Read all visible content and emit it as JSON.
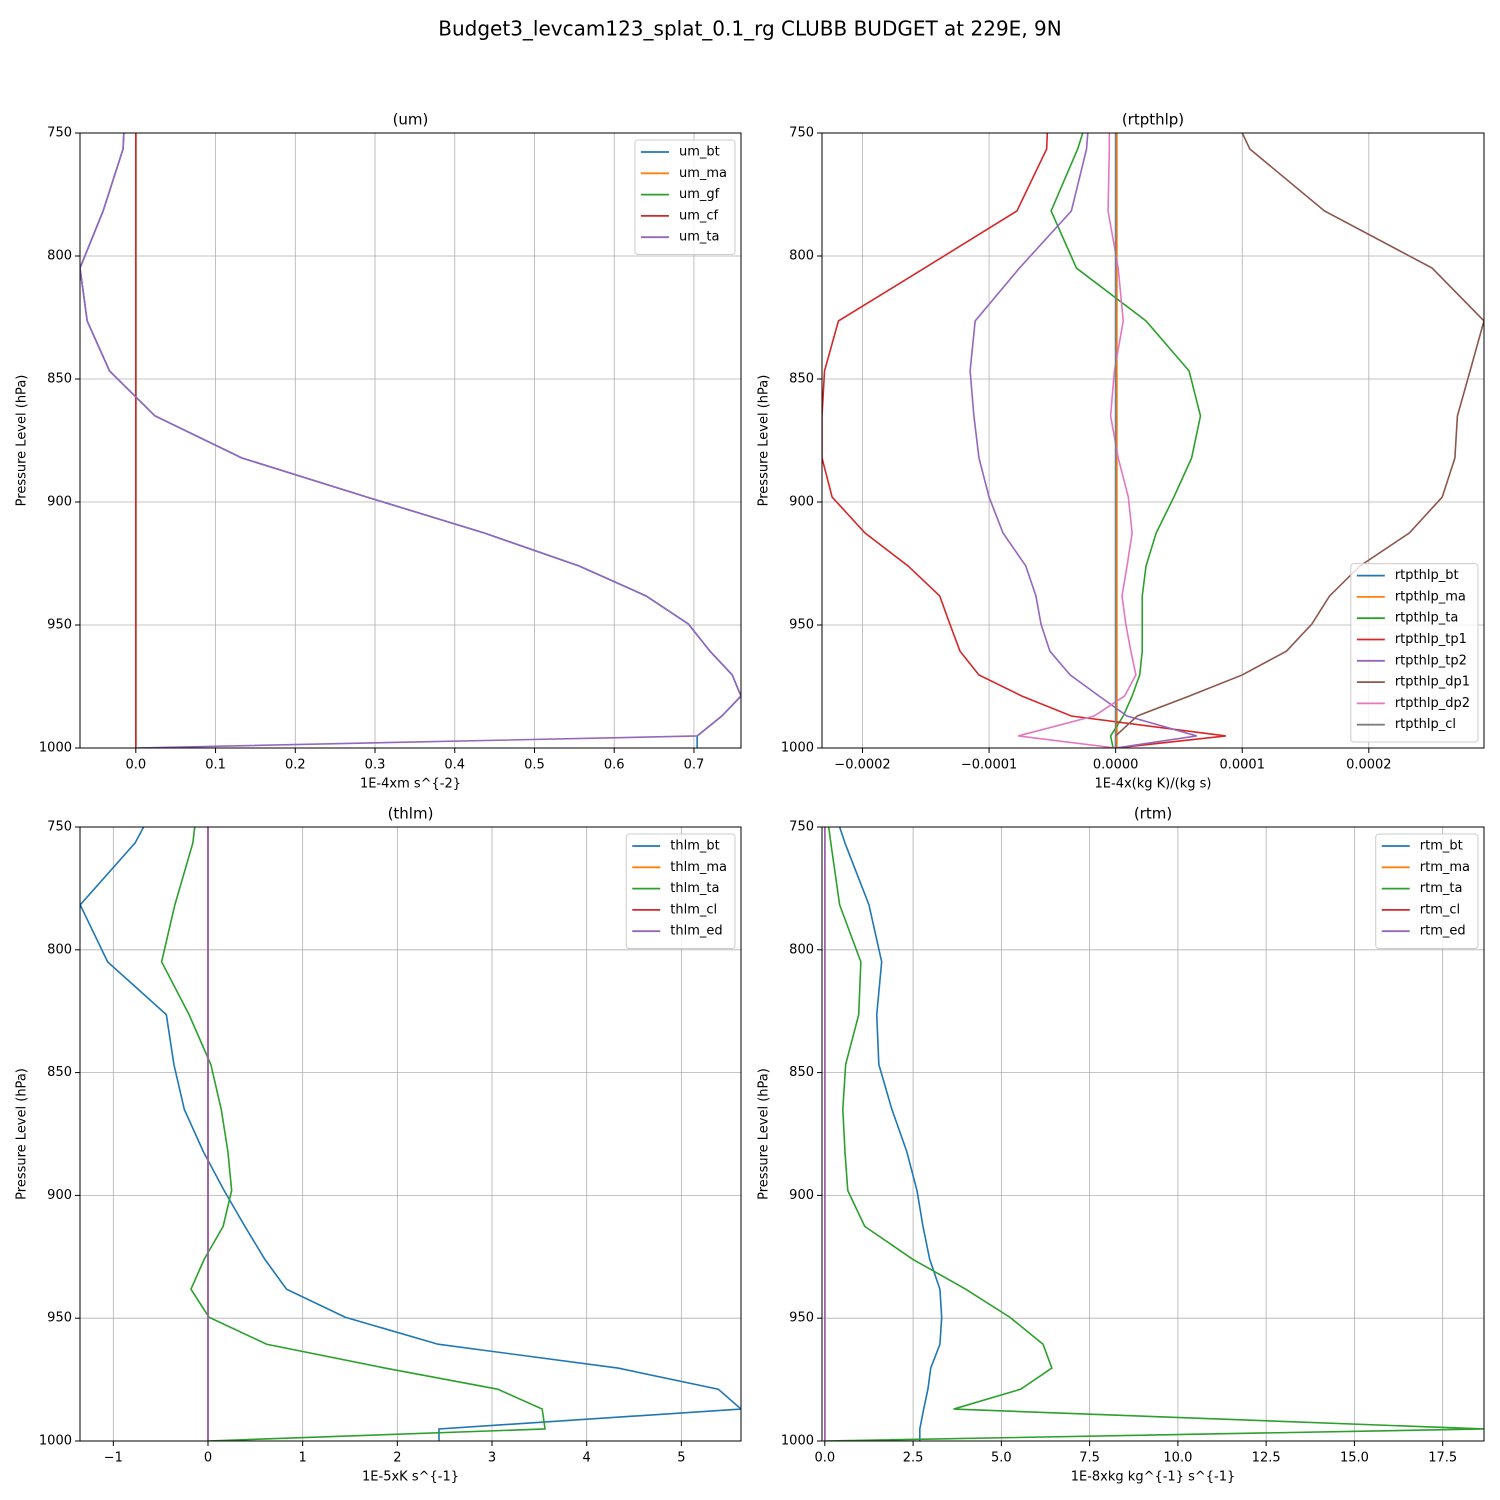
{
  "title": "Budget3_levcam123_splat_0.1_rg CLUBB BUDGET at 229E, 9N",
  "chart_data": [
    {
      "type": "line",
      "title": "(um)",
      "xlabel": "1E-4xm s^{-2}",
      "ylabel": "Pressure Level (hPa)",
      "y": [
        750,
        756.5,
        781.7,
        804.9,
        826.4,
        846.7,
        865,
        882.1,
        898,
        912.6,
        926,
        938.2,
        949.6,
        960.6,
        970.3,
        978.9,
        987,
        995.1,
        1000
      ],
      "series": [
        {
          "name": "um_bt",
          "color": "#1f77b4",
          "values": [
            -0.015,
            -0.016,
            -0.041,
            -0.07,
            -0.061,
            -0.033,
            0.024,
            0.133,
            0.29,
            0.437,
            0.556,
            0.64,
            0.693,
            0.72,
            0.748,
            0.759,
            0.735,
            0.704,
            0.704
          ]
        },
        {
          "name": "um_ma",
          "color": "#ff7f0e",
          "values": [
            0,
            0,
            0,
            0,
            0,
            0,
            0,
            0,
            0,
            0,
            0,
            0,
            0,
            0,
            0,
            0,
            0,
            0,
            0
          ]
        },
        {
          "name": "um_gf",
          "color": "#2ca02c",
          "values": [
            0,
            0,
            0,
            0,
            0,
            0,
            0,
            0,
            0,
            0,
            0,
            0,
            0,
            0,
            0,
            0,
            0,
            0,
            0
          ]
        },
        {
          "name": "um_cf",
          "color": "#d62728",
          "values": [
            0,
            0,
            0,
            0,
            0,
            0,
            0,
            0,
            0,
            0,
            0,
            0,
            0,
            0,
            0,
            0,
            0,
            0,
            0
          ]
        },
        {
          "name": "um_ta",
          "color": "#9467bd",
          "values": [
            -0.015,
            -0.016,
            -0.041,
            -0.07,
            -0.061,
            -0.033,
            0.024,
            0.133,
            0.29,
            0.437,
            0.556,
            0.64,
            0.693,
            0.72,
            0.748,
            0.759,
            0.735,
            0.704,
            0
          ]
        }
      ],
      "xlim": [
        -0.07,
        0.759
      ],
      "ylim": [
        1000,
        750
      ],
      "xticks": [
        {
          "value": 0,
          "label": "0.0"
        },
        0.1,
        0.2,
        0.3,
        0.4,
        0.5,
        0.6,
        0.7
      ],
      "yticks": [
        750,
        800,
        850,
        900,
        950,
        1000
      ],
      "grid": true,
      "legend": "upper right"
    },
    {
      "type": "line",
      "title": "(rtpthlp)",
      "xlabel": "1E-4x(kg K)/(kg s)",
      "ylabel": "Pressure Level (hPa)",
      "y": [
        750,
        756.5,
        781.7,
        804.9,
        826.4,
        846.7,
        865,
        882.1,
        898,
        912.6,
        926,
        938.2,
        949.6,
        960.6,
        970.3,
        978.9,
        987,
        995.1,
        1000
      ],
      "series": [
        {
          "name": "rtpthlp_bt",
          "color": "#1f77b4",
          "values": [
            0,
            0,
            0,
            0,
            0,
            0,
            0,
            0,
            0,
            0,
            0,
            0,
            0,
            0,
            0,
            0,
            0,
            0,
            0
          ]
        },
        {
          "name": "rtpthlp_ma",
          "color": "#ff7f0e",
          "values": [
            1e-06,
            1e-06,
            1e-06,
            1e-06,
            1e-06,
            1e-06,
            1e-06,
            1e-06,
            1e-06,
            1e-06,
            1e-06,
            1e-06,
            1e-06,
            1e-06,
            1e-06,
            1e-06,
            1e-06,
            1e-06,
            1e-06
          ]
        },
        {
          "name": "rtpthlp_ta",
          "color": "#2ca02c",
          "values": [
            -2.6e-05,
            -3e-05,
            -5.1e-05,
            -3.1e-05,
            2.4e-05,
            5.8e-05,
            6.7e-05,
            6e-05,
            4.6e-05,
            3.2e-05,
            2.4e-05,
            2.1e-05,
            2.1e-05,
            2.1e-05,
            1.9e-05,
            1.3e-05,
            6e-06,
            -4e-06,
            -2e-06
          ]
        },
        {
          "name": "rtpthlp_tp1",
          "color": "#d62728",
          "values": [
            -5.4e-05,
            -5.45e-05,
            -7.8e-05,
            -0.000151,
            -0.000219,
            -0.00023,
            -0.000232,
            -0.000232,
            -0.000224,
            -0.000198,
            -0.000164,
            -0.000139,
            -0.000131,
            -0.000123,
            -0.000108,
            -7.4e-05,
            -3.5e-05,
            8.7e-05,
            0
          ]
        },
        {
          "name": "rtpthlp_tp2",
          "color": "#9467bd",
          "values": [
            -2.2e-05,
            -2.3e-05,
            -3.5e-05,
            -7.6e-05,
            -0.000111,
            -0.000115,
            -0.000112,
            -0.000108,
            -0.0001,
            -8.9e-05,
            -7.1e-05,
            -6.3e-05,
            -5.9e-05,
            -5.2e-05,
            -3.6e-05,
            -1.3e-05,
            9e-06,
            6.4e-05,
            0
          ]
        },
        {
          "name": "rtpthlp_dp1",
          "color": "#8c564b",
          "values": [
            0.0001,
            0.000106,
            0.000165,
            0.00025,
            0.000291,
            0.00028,
            0.00027,
            0.000268,
            0.000258,
            0.000232,
            0.000193,
            0.000169,
            0.000155,
            0.000135,
            0.0001,
            5.8e-05,
            1.7e-05,
            0,
            0
          ]
        },
        {
          "name": "rtpthlp_dp2",
          "color": "#e377c2",
          "values": [
            -5e-06,
            -5e-06,
            -6e-06,
            2e-06,
            6e-06,
            -1e-06,
            -4e-06,
            2e-06,
            1e-05,
            1.3e-05,
            9e-06,
            5e-06,
            8e-06,
            1.2e-05,
            1.6e-05,
            7e-06,
            -1.7e-05,
            -7.7e-05,
            0
          ]
        },
        {
          "name": "rtpthlp_cl",
          "color": "#7f7f7f",
          "values": [
            0,
            0,
            0,
            0,
            0,
            0,
            0,
            0,
            0,
            0,
            0,
            0,
            0,
            0,
            0,
            0,
            0,
            0,
            0
          ]
        }
      ],
      "xlim": [
        -0.000232,
        0.000291
      ],
      "ylim": [
        1000,
        750
      ],
      "xticks": [
        {
          "value": -0.0002,
          "label": "−0.0002"
        },
        {
          "value": -0.0001,
          "label": "−0.0001"
        },
        {
          "value": 0,
          "label": "0.0000"
        },
        0.0001,
        0.0002
      ],
      "yticks": [
        750,
        800,
        850,
        900,
        950,
        1000
      ],
      "grid": true,
      "legend": "lower right"
    },
    {
      "type": "line",
      "title": "(thlm)",
      "xlabel": "1E-5xK s^{-1}",
      "ylabel": "Pressure Level (hPa)",
      "y": [
        750,
        756.5,
        781.7,
        804.9,
        826.4,
        846.7,
        865,
        882.1,
        898,
        912.6,
        926,
        938.2,
        949.6,
        960.6,
        970.3,
        978.9,
        987,
        995.1,
        1000
      ],
      "series": [
        {
          "name": "thlm_bt",
          "color": "#1f77b4",
          "values": [
            -0.68,
            -0.77,
            -1.35,
            -1.06,
            -0.44,
            -0.36,
            -0.25,
            -0.05,
            0.17,
            0.39,
            0.6,
            0.83,
            1.45,
            2.43,
            4.33,
            5.39,
            5.63,
            2.44,
            2.44
          ]
        },
        {
          "name": "thlm_ma",
          "color": "#ff7f0e",
          "values": [
            0,
            0,
            0,
            0,
            0,
            0,
            0,
            0,
            0,
            0,
            0,
            0,
            0,
            0,
            0,
            0,
            0,
            0,
            0
          ]
        },
        {
          "name": "thlm_ta",
          "color": "#2ca02c",
          "values": [
            -0.14,
            -0.16,
            -0.35,
            -0.49,
            -0.2,
            0.03,
            0.14,
            0.21,
            0.25,
            0.16,
            -0.04,
            -0.18,
            0.01,
            0.62,
            1.87,
            3.06,
            3.53,
            3.56,
            0
          ]
        },
        {
          "name": "thlm_cl",
          "color": "#d62728",
          "values": [
            0,
            0,
            0,
            0,
            0,
            0,
            0,
            0,
            0,
            0,
            0,
            0,
            0,
            0,
            0,
            0,
            0,
            0,
            0
          ]
        },
        {
          "name": "thlm_ed",
          "color": "#9467bd",
          "values": [
            0,
            0,
            0,
            0,
            0,
            0,
            0,
            0,
            0,
            0,
            0,
            0,
            0,
            0,
            0,
            0,
            0,
            0,
            0
          ]
        }
      ],
      "xlim": [
        -1.352,
        5.63
      ],
      "ylim": [
        1000,
        750
      ],
      "xticks": [
        {
          "value": -1,
          "label": "−1"
        },
        0,
        1,
        2,
        3,
        4,
        5
      ],
      "yticks": [
        750,
        800,
        850,
        900,
        950,
        1000
      ],
      "grid": true,
      "legend": "upper right"
    },
    {
      "type": "line",
      "title": "(rtm)",
      "xlabel": "1E-8xkg kg^{-1} s^{-1}",
      "ylabel": "Pressure Level (hPa)",
      "y": [
        750,
        756.5,
        781.7,
        804.9,
        826.4,
        846.7,
        865,
        882.1,
        898,
        912.6,
        926,
        938.2,
        949.6,
        960.6,
        970.3,
        978.9,
        987,
        995.1,
        1000
      ],
      "series": [
        {
          "name": "rtm_bt",
          "color": "#1f77b4",
          "values": [
            0.42,
            0.57,
            1.25,
            1.61,
            1.47,
            1.53,
            1.9,
            2.32,
            2.61,
            2.78,
            2.97,
            3.26,
            3.31,
            3.26,
            3.0,
            2.92,
            2.8,
            2.69,
            2.69
          ]
        },
        {
          "name": "rtm_ma",
          "color": "#ff7f0e",
          "values": [
            0,
            0,
            0,
            0,
            0,
            0,
            0,
            0,
            0,
            0,
            0,
            0,
            0,
            0,
            0,
            0,
            0,
            0,
            0
          ]
        },
        {
          "name": "rtm_ta",
          "color": "#2ca02c",
          "values": [
            0.11,
            0.17,
            0.42,
            1.02,
            0.96,
            0.59,
            0.51,
            0.57,
            0.65,
            1.13,
            2.49,
            3.99,
            5.24,
            6.18,
            6.43,
            5.55,
            3.65,
            18.67,
            0
          ]
        },
        {
          "name": "rtm_cl",
          "color": "#d62728",
          "values": [
            0,
            0,
            0,
            0,
            0,
            0,
            0,
            0,
            0,
            0,
            0,
            0,
            0,
            0,
            0,
            0,
            0,
            0,
            0
          ]
        },
        {
          "name": "rtm_ed",
          "color": "#9467bd",
          "values": [
            0,
            0,
            0,
            0,
            0,
            0,
            0,
            0,
            0,
            0,
            0,
            0,
            0,
            0,
            0,
            0,
            0,
            0,
            0
          ]
        }
      ],
      "xlim": [
        -0.08,
        18.67
      ],
      "ylim": [
        1000,
        750
      ],
      "xticks": [
        {
          "value": 0,
          "label": "0.0"
        },
        2.5,
        {
          "value": 5,
          "label": "5.0"
        },
        7.5,
        {
          "value": 10,
          "label": "10.0"
        },
        12.5,
        {
          "value": 15,
          "label": "15.0"
        },
        17.5
      ],
      "yticks": [
        750,
        800,
        850,
        900,
        950,
        1000
      ],
      "grid": true,
      "legend": "upper right"
    }
  ]
}
